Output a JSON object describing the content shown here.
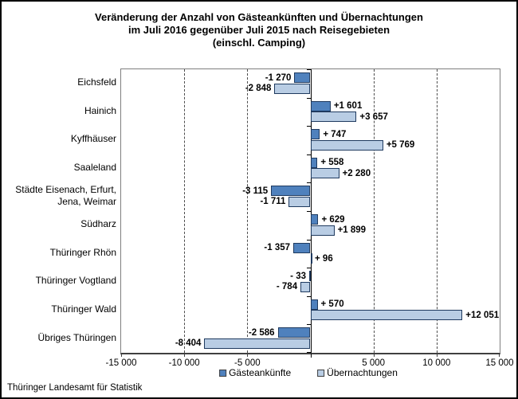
{
  "chart_data": {
    "type": "bar",
    "orientation": "horizontal",
    "title": "Veränderung der Anzahl von Gästeankünften und Übernachtungen\nim Juli 2016 gegenüber Juli 2015 nach Reisegebieten\n(einschl. Camping)",
    "categories": [
      "Eichsfeld",
      "Hainich",
      "Kyffhäuser",
      "Saaleland",
      "Städte Eisenach, Erfurt,\nJena, Weimar",
      "Südharz",
      "Thüringer Rhön",
      "Thüringer Vogtland",
      "Thüringer Wald",
      "Übriges Thüringen"
    ],
    "series": [
      {
        "name": "Gästeankünfte",
        "color": "#4F81BD",
        "values": [
          -1270,
          1601,
          747,
          558,
          -3115,
          629,
          -1357,
          -33,
          570,
          -2586
        ],
        "labels": [
          "-1 270",
          "+1 601",
          "+ 747",
          "+ 558",
          "-3 115",
          "+ 629",
          "-1 357",
          "- 33",
          "+ 570",
          "-2 586"
        ]
      },
      {
        "name": "Übernachtungen",
        "color": "#B9CDE4",
        "values": [
          -2848,
          3657,
          5769,
          2280,
          -1711,
          1899,
          96,
          -784,
          12051,
          -8404
        ],
        "labels": [
          "-2 848",
          "+3 657",
          "+5 769",
          "+2 280",
          "-1 711",
          "+1 899",
          "+ 96",
          "- 784",
          "+12 051",
          "-8 404"
        ]
      }
    ],
    "xlim": [
      -15000,
      15000
    ],
    "x_ticks": [
      {
        "value": -15000,
        "label": "-15 000"
      },
      {
        "value": -10000,
        "label": "-10 000"
      },
      {
        "value": -5000,
        "label": "-5 000"
      },
      {
        "value": 0,
        "label": ""
      },
      {
        "value": 5000,
        "label": "5 000"
      },
      {
        "value": 10000,
        "label": "10 000"
      },
      {
        "value": 15000,
        "label": "15 000"
      }
    ],
    "grid": "vertical-dashed",
    "legend_position": "bottom-center",
    "bar_border_color": "#1F3A5F"
  },
  "footer": {
    "source": "Thüringer Landesamt für Statistik"
  }
}
